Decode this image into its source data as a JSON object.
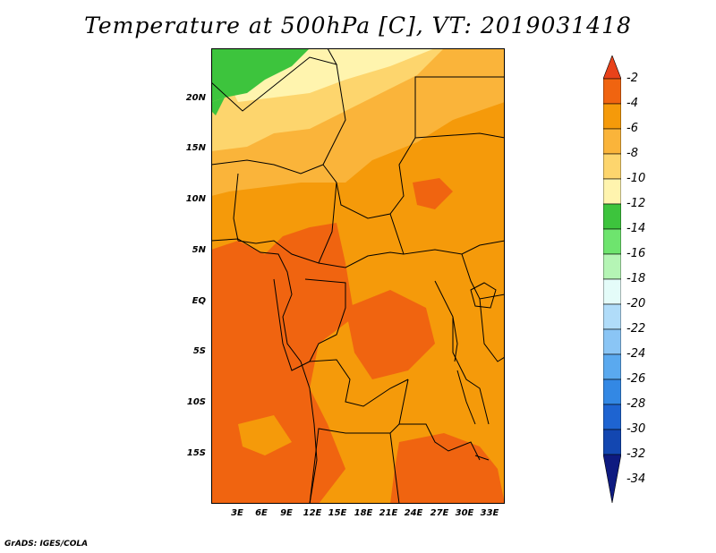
{
  "title": "Temperature at 500hPa [C], VT: 2019031418",
  "credit": "GrADS: IGES/COLA",
  "map": {
    "lat_ticks": [
      "20N",
      "15N",
      "10N",
      "5N",
      "EQ",
      "5S",
      "10S",
      "15S"
    ],
    "lon_ticks": [
      "3E",
      "6E",
      "9E",
      "12E",
      "15E",
      "18E",
      "21E",
      "24E",
      "27E",
      "30E",
      "33E"
    ]
  },
  "colorbar": {
    "labels": [
      "-2",
      "-4",
      "-6",
      "-8",
      "-10",
      "-12",
      "-14",
      "-16",
      "-18",
      "-20",
      "-22",
      "-24",
      "-26",
      "-28",
      "-30",
      "-32",
      "-34"
    ],
    "colors": [
      "#e8421a",
      "#f06410",
      "#f59a0a",
      "#fab43a",
      "#fdd56d",
      "#fff4ae",
      "#3dc43d",
      "#6ee46e",
      "#b5f5b5",
      "#e4fcf9",
      "#b0dcf9",
      "#8ac5f5",
      "#5aa9ef",
      "#3388e4",
      "#1e64d1",
      "#1347b1",
      "#0e1a80"
    ],
    "top_arrow_color": "#e8421a",
    "bottom_arrow_color": "#ddeeff"
  }
}
